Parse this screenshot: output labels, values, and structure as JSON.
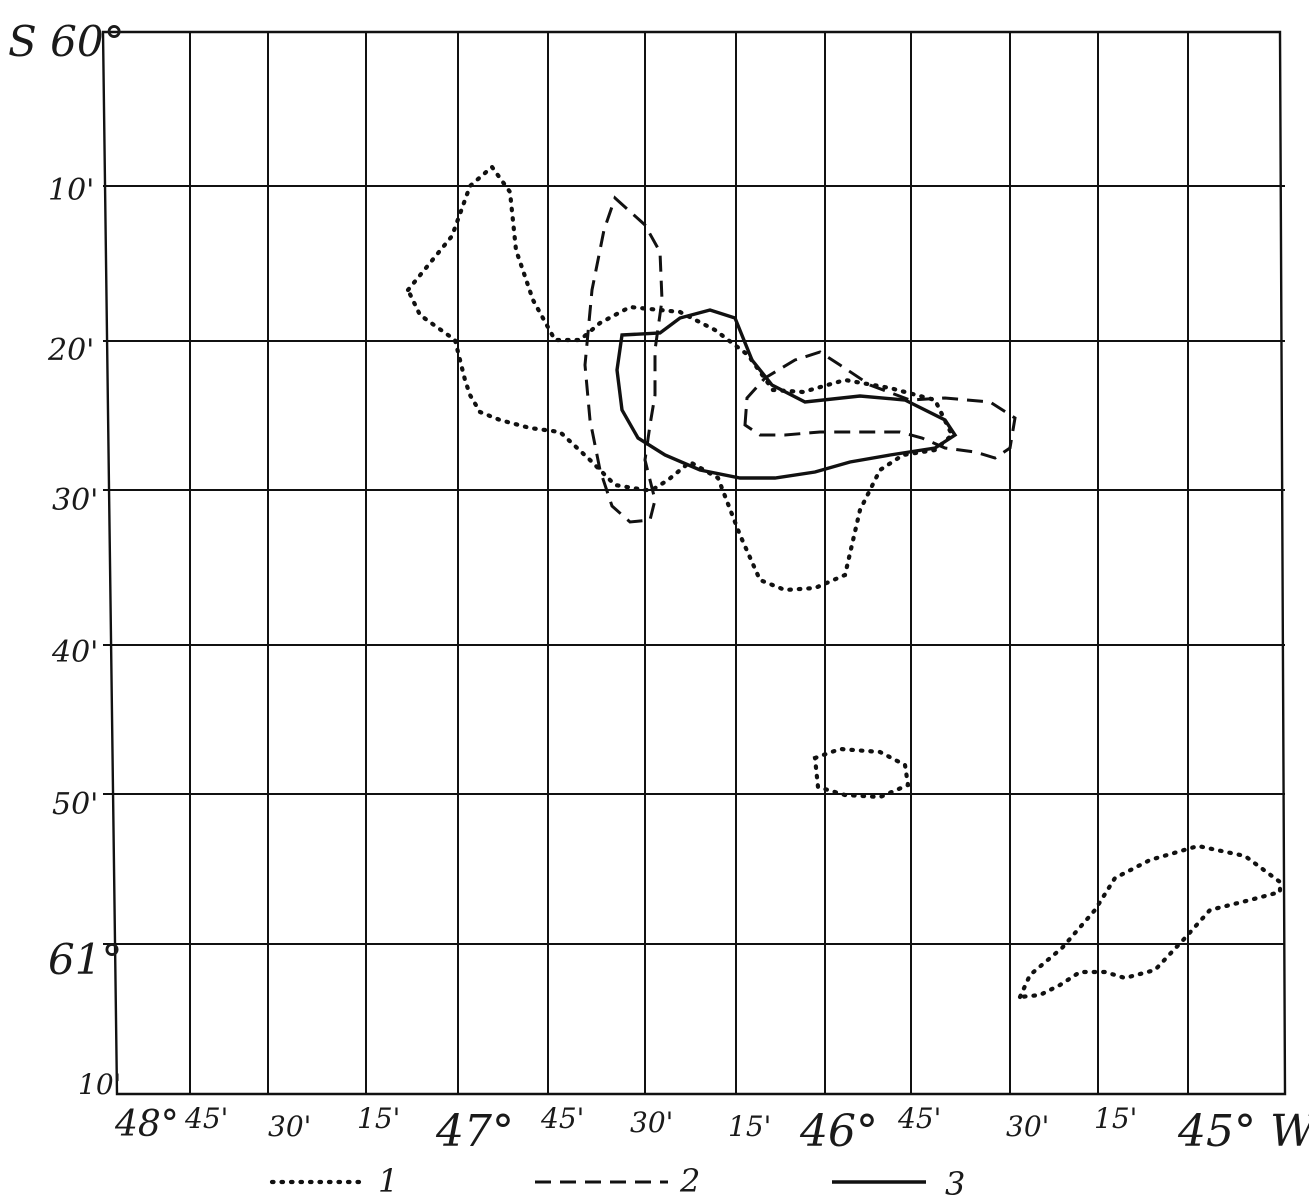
{
  "map": {
    "lat_labels": [
      {
        "key": "lat_60",
        "text": "S 60°"
      },
      {
        "key": "lat_10a",
        "text": "10'"
      },
      {
        "key": "lat_20",
        "text": "20'"
      },
      {
        "key": "lat_30",
        "text": "30'"
      },
      {
        "key": "lat_40",
        "text": "40'"
      },
      {
        "key": "lat_50",
        "text": "50'"
      },
      {
        "key": "lat_61",
        "text": "61°"
      },
      {
        "key": "lat_10b",
        "text": "10'"
      }
    ],
    "lon_labels": [
      "48°",
      "45'",
      "30'",
      "15'",
      "47°",
      "45'",
      "30'",
      "15'",
      "46°",
      "45'",
      "30'",
      "15'",
      "45° W"
    ],
    "legend": [
      {
        "key": "1",
        "style": "dotted"
      },
      {
        "key": "2",
        "style": "dashed"
      },
      {
        "key": "3",
        "style": "solid"
      }
    ],
    "latitude_range": [
      "60°00'S",
      "61°10'S"
    ],
    "longitude_range": [
      "48°00'W",
      "45°00'W"
    ],
    "line_color": "#111111"
  }
}
